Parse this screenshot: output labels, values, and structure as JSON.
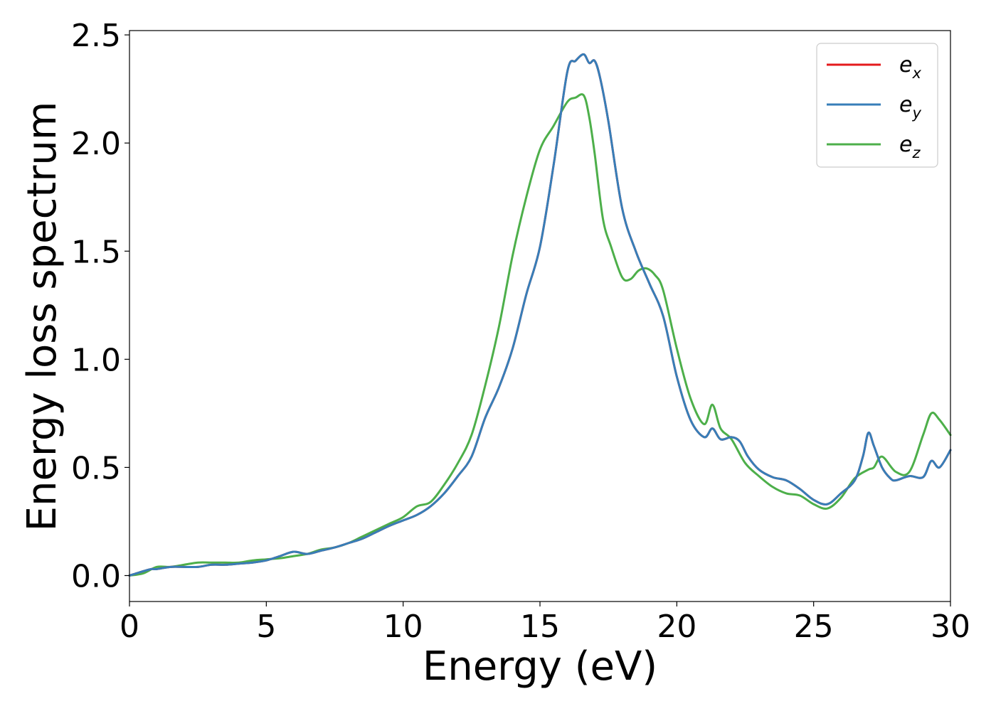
{
  "chart_data": {
    "type": "line",
    "title": "",
    "xlabel": "Energy (eV)",
    "ylabel": "Energy loss spectrum",
    "xlim": [
      0,
      30
    ],
    "ylim": [
      -0.12,
      2.52
    ],
    "xticks": [
      0,
      5,
      10,
      15,
      20,
      25,
      30
    ],
    "xtick_labels": [
      "0",
      "5",
      "10",
      "15",
      "20",
      "25",
      "30"
    ],
    "yticks": [
      0.0,
      0.5,
      1.0,
      1.5,
      2.0,
      2.5
    ],
    "ytick_labels": [
      "0.0",
      "0.5",
      "1.0",
      "1.5",
      "2.0",
      "2.5"
    ],
    "grid": false,
    "legend_position": "top-right",
    "legend": [
      {
        "base": "e",
        "sub": "x"
      },
      {
        "base": "e",
        "sub": "y"
      },
      {
        "base": "e",
        "sub": "z"
      }
    ],
    "series": [
      {
        "name": "e_x",
        "color": "#e41a1c",
        "x": [
          0,
          0.5,
          0.8,
          1,
          1.5,
          2,
          2.5,
          3,
          3.5,
          4,
          4.5,
          5,
          5.5,
          6,
          6.5,
          7,
          7.5,
          8,
          8.5,
          9,
          9.5,
          10,
          10.5,
          11,
          11.5,
          12,
          12.5,
          13,
          13.5,
          14,
          14.5,
          15,
          15.5,
          16,
          16.3,
          16.6,
          16.8,
          17,
          17.2,
          17.5,
          18,
          18.5,
          19,
          19.5,
          20,
          20.5,
          21,
          21.3,
          21.6,
          22,
          22.3,
          22.6,
          23,
          23.5,
          24,
          24.5,
          25,
          25.5,
          26,
          26.5,
          26.8,
          27,
          27.2,
          27.5,
          27.8,
          28,
          28.5,
          29,
          29.3,
          29.6,
          30
        ],
        "y": [
          0.0,
          0.02,
          0.03,
          0.03,
          0.04,
          0.04,
          0.04,
          0.05,
          0.05,
          0.055,
          0.06,
          0.07,
          0.09,
          0.11,
          0.1,
          0.115,
          0.13,
          0.15,
          0.17,
          0.2,
          0.23,
          0.255,
          0.28,
          0.32,
          0.38,
          0.46,
          0.55,
          0.73,
          0.87,
          1.05,
          1.3,
          1.52,
          1.9,
          2.33,
          2.38,
          2.41,
          2.37,
          2.38,
          2.3,
          2.1,
          1.7,
          1.5,
          1.35,
          1.2,
          0.92,
          0.72,
          0.64,
          0.68,
          0.63,
          0.64,
          0.62,
          0.55,
          0.49,
          0.455,
          0.44,
          0.4,
          0.35,
          0.33,
          0.38,
          0.44,
          0.55,
          0.66,
          0.6,
          0.5,
          0.45,
          0.44,
          0.46,
          0.455,
          0.53,
          0.5,
          0.58
        ]
      },
      {
        "name": "e_y",
        "color": "#377eb8",
        "x": [
          0,
          0.5,
          0.8,
          1,
          1.5,
          2,
          2.5,
          3,
          3.5,
          4,
          4.5,
          5,
          5.5,
          6,
          6.5,
          7,
          7.5,
          8,
          8.5,
          9,
          9.5,
          10,
          10.5,
          11,
          11.5,
          12,
          12.5,
          13,
          13.5,
          14,
          14.5,
          15,
          15.5,
          16,
          16.3,
          16.6,
          16.8,
          17,
          17.2,
          17.5,
          18,
          18.5,
          19,
          19.5,
          20,
          20.5,
          21,
          21.3,
          21.6,
          22,
          22.3,
          22.6,
          23,
          23.5,
          24,
          24.5,
          25,
          25.5,
          26,
          26.5,
          26.8,
          27,
          27.2,
          27.5,
          27.8,
          28,
          28.5,
          29,
          29.3,
          29.6,
          30
        ],
        "y": [
          0.0,
          0.02,
          0.03,
          0.03,
          0.04,
          0.04,
          0.04,
          0.05,
          0.05,
          0.055,
          0.06,
          0.07,
          0.09,
          0.11,
          0.1,
          0.115,
          0.13,
          0.15,
          0.17,
          0.2,
          0.23,
          0.255,
          0.28,
          0.32,
          0.38,
          0.46,
          0.55,
          0.73,
          0.87,
          1.05,
          1.3,
          1.52,
          1.9,
          2.33,
          2.38,
          2.41,
          2.37,
          2.38,
          2.3,
          2.1,
          1.7,
          1.5,
          1.35,
          1.2,
          0.92,
          0.72,
          0.64,
          0.68,
          0.63,
          0.64,
          0.62,
          0.55,
          0.49,
          0.455,
          0.44,
          0.4,
          0.35,
          0.33,
          0.38,
          0.44,
          0.55,
          0.66,
          0.6,
          0.5,
          0.45,
          0.44,
          0.46,
          0.455,
          0.53,
          0.5,
          0.58
        ]
      },
      {
        "name": "e_z",
        "color": "#4daf4a",
        "x": [
          0,
          0.5,
          1,
          1.5,
          2,
          2.5,
          3,
          3.5,
          4,
          4.5,
          5,
          5.5,
          6,
          6.5,
          7,
          7.5,
          8,
          8.5,
          9,
          9.5,
          10,
          10.5,
          11,
          11.5,
          12,
          12.5,
          13,
          13.5,
          14,
          14.5,
          15,
          15.5,
          16,
          16.3,
          16.6,
          16.8,
          17,
          17.3,
          17.6,
          18,
          18.3,
          18.6,
          18.9,
          19.2,
          19.5,
          20,
          20.5,
          21,
          21.3,
          21.6,
          22,
          22.5,
          23,
          23.5,
          24,
          24.5,
          25,
          25.5,
          26,
          26.5,
          27,
          27.2,
          27.5,
          28,
          28.5,
          29,
          29.3,
          29.6,
          30
        ],
        "y": [
          0.0,
          0.01,
          0.04,
          0.04,
          0.05,
          0.06,
          0.06,
          0.06,
          0.06,
          0.07,
          0.075,
          0.08,
          0.09,
          0.1,
          0.12,
          0.13,
          0.15,
          0.18,
          0.21,
          0.24,
          0.27,
          0.32,
          0.34,
          0.42,
          0.52,
          0.65,
          0.88,
          1.15,
          1.48,
          1.75,
          1.97,
          2.08,
          2.19,
          2.21,
          2.22,
          2.12,
          1.95,
          1.65,
          1.52,
          1.38,
          1.37,
          1.41,
          1.42,
          1.39,
          1.32,
          1.05,
          0.82,
          0.7,
          0.79,
          0.68,
          0.63,
          0.52,
          0.46,
          0.41,
          0.38,
          0.37,
          0.33,
          0.31,
          0.36,
          0.45,
          0.49,
          0.5,
          0.55,
          0.48,
          0.48,
          0.65,
          0.75,
          0.72,
          0.65
        ]
      }
    ]
  }
}
